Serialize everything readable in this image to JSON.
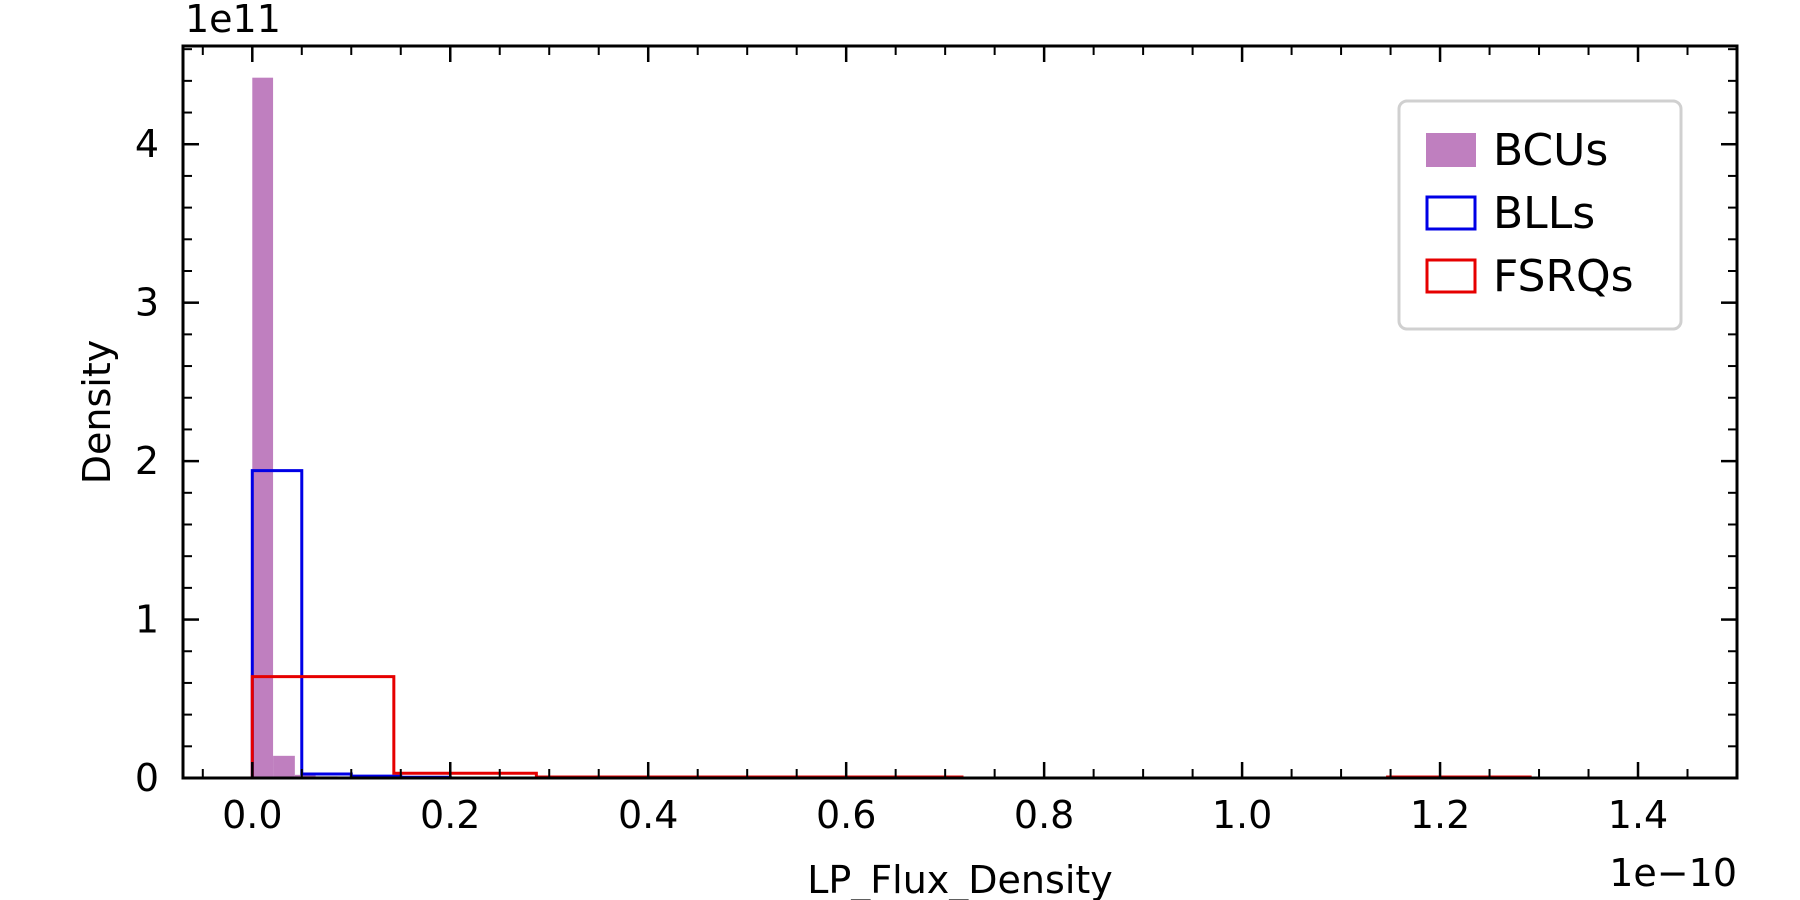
{
  "chart_data": {
    "type": "histogram",
    "title": "",
    "xlabel": "LP_Flux_Density",
    "ylabel": "Density",
    "x_offset_text": "1e−10",
    "y_offset_text": "1e11",
    "xlim": [
      -0.07,
      1.5
    ],
    "ylim": [
      0,
      4.62
    ],
    "x_ticks": [
      0.0,
      0.2,
      0.4,
      0.6,
      0.8,
      1.0,
      1.2,
      1.4
    ],
    "x_tick_labels": [
      "0.0",
      "0.2",
      "0.4",
      "0.6",
      "0.8",
      "1.0",
      "1.2",
      "1.4"
    ],
    "y_ticks": [
      0,
      1,
      2,
      3,
      4
    ],
    "y_tick_labels": [
      "0",
      "1",
      "2",
      "3",
      "4"
    ],
    "x_minor_step": 0.05,
    "y_minor_step": 0.2,
    "grid": false,
    "legend_position": "top-right",
    "series": [
      {
        "name": "BCUs",
        "style": "filled",
        "color": "#bf7fbf",
        "bins": [
          {
            "x0": 0.0,
            "x1": 0.021,
            "value": 4.42
          },
          {
            "x0": 0.021,
            "x1": 0.043,
            "value": 0.14
          },
          {
            "x0": 0.043,
            "x1": 0.064,
            "value": 0.02
          },
          {
            "x0": 0.064,
            "x1": 0.086,
            "value": 0.01
          }
        ]
      },
      {
        "name": "BLLs",
        "style": "step",
        "color": "#0000e6",
        "bins": [
          {
            "x0": 0.0,
            "x1": 0.05,
            "value": 1.94
          },
          {
            "x0": 0.05,
            "x1": 0.1,
            "value": 0.025
          },
          {
            "x0": 0.1,
            "x1": 0.15,
            "value": 0.012
          },
          {
            "x0": 0.15,
            "x1": 0.2,
            "value": 0.005
          }
        ]
      },
      {
        "name": "FSRQs",
        "style": "step",
        "color": "#e60000",
        "bins": [
          {
            "x0": 0.0,
            "x1": 0.143,
            "value": 0.64
          },
          {
            "x0": 0.143,
            "x1": 0.287,
            "value": 0.03
          },
          {
            "x0": 0.287,
            "x1": 0.43,
            "value": 0.006
          },
          {
            "x0": 0.43,
            "x1": 0.574,
            "value": 0.006
          },
          {
            "x0": 0.574,
            "x1": 0.717,
            "value": 0.006
          },
          {
            "x0": 0.717,
            "x1": 0.861,
            "value": 0.0
          },
          {
            "x0": 0.861,
            "x1": 1.004,
            "value": 0.0
          },
          {
            "x0": 1.004,
            "x1": 1.147,
            "value": 0.0
          },
          {
            "x0": 1.147,
            "x1": 1.291,
            "value": 0.006
          }
        ]
      }
    ]
  }
}
